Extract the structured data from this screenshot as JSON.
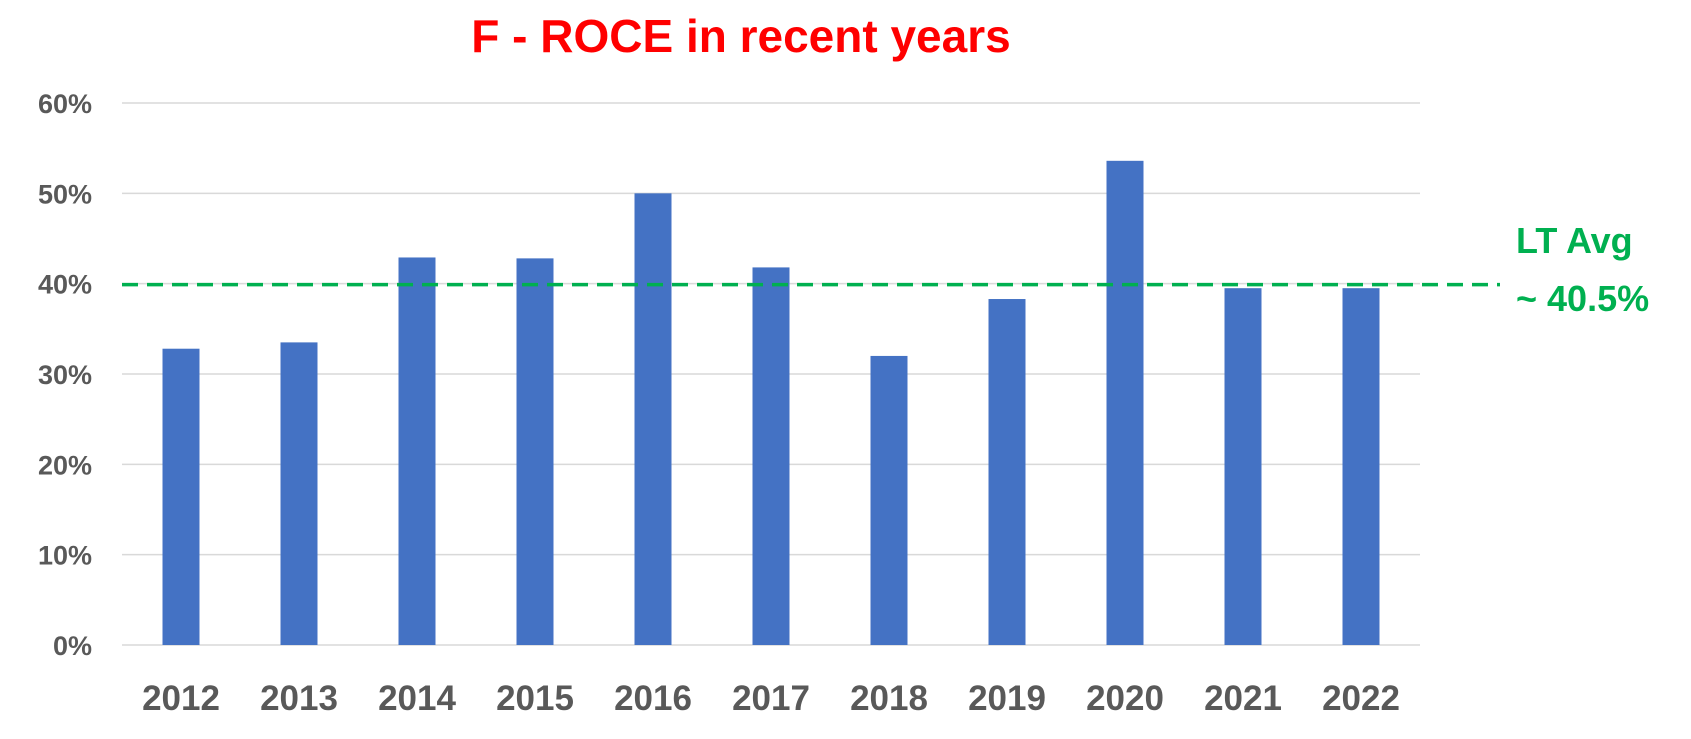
{
  "chart_data": {
    "type": "bar",
    "title": "F - ROCE  in recent years",
    "xlabel": "",
    "ylabel": "",
    "categories": [
      "2012",
      "2013",
      "2014",
      "2015",
      "2016",
      "2017",
      "2018",
      "2019",
      "2020",
      "2021",
      "2022"
    ],
    "values": [
      32.8,
      33.5,
      42.9,
      42.8,
      50.0,
      41.8,
      32.0,
      38.3,
      53.6,
      39.5,
      39.5
    ],
    "ylim": [
      0,
      60
    ],
    "yticks": [
      "0%",
      "10%",
      "20%",
      "30%",
      "40%",
      "50%",
      "60%"
    ],
    "ytick_values": [
      0,
      10,
      20,
      30,
      40,
      50,
      60
    ],
    "grid": true,
    "legend": "none",
    "reference_line": {
      "value": 40,
      "style": "dashed",
      "label_line1": "LT Avg",
      "label_line2": "~ 40.5%"
    },
    "colors": {
      "bar": "#4472C4",
      "title": "#FF0000",
      "reference": "#00B050",
      "gridline": "#D9D9D9",
      "axis_text": "#595959"
    }
  }
}
